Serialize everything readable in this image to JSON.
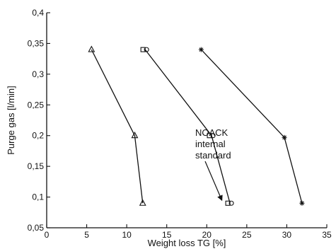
{
  "chart_data": {
    "type": "line",
    "xlabel": "Weight loss TG [%]",
    "ylabel": "Purge gas [l/min]",
    "xlim": [
      0,
      35
    ],
    "ylim": [
      0.05,
      0.4
    ],
    "x_ticks": [
      0,
      5,
      10,
      15,
      20,
      25,
      30,
      35
    ],
    "x_tick_labels": [
      "0",
      "5",
      "10",
      "15",
      "20",
      "25",
      "30",
      "35"
    ],
    "y_ticks": [
      0.05,
      0.1,
      0.15,
      0.2,
      0.25,
      0.3,
      0.35,
      0.4
    ],
    "y_tick_labels": [
      "0,05",
      "0,1",
      "0,15",
      "0,2",
      "0,25",
      "0,3",
      "0,35",
      "0,4"
    ],
    "grid": false,
    "series": [
      {
        "marker": "triangle",
        "points": [
          {
            "x": 5.6,
            "y": 0.34
          },
          {
            "x": 11.0,
            "y": 0.2
          },
          {
            "x": 12.0,
            "y": 0.09
          }
        ]
      },
      {
        "marker": "square-circle",
        "points": [
          {
            "x": 12.3,
            "y": 0.34
          },
          {
            "x": 20.6,
            "y": 0.2
          },
          {
            "x": 22.9,
            "y": 0.09
          }
        ]
      },
      {
        "marker": "star",
        "points": [
          {
            "x": 19.3,
            "y": 0.34
          },
          {
            "x": 29.7,
            "y": 0.197
          },
          {
            "x": 31.9,
            "y": 0.09
          }
        ]
      }
    ],
    "annotations": [
      {
        "lines": [
          "NOACK",
          "internal",
          "standard"
        ],
        "points_to": {
          "x": 22.6,
          "y": 0.09
        }
      }
    ]
  }
}
